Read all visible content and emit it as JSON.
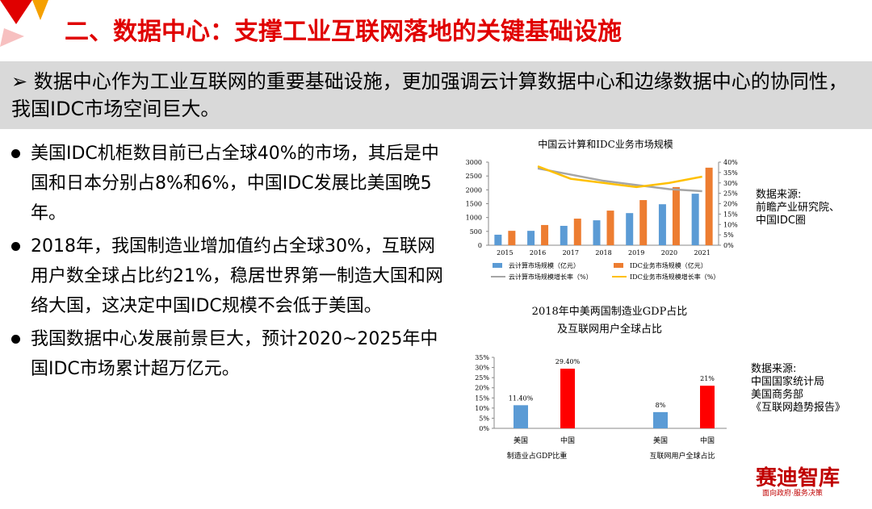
{
  "header": {
    "title": "二、数据中心：支撑工业互联网落地的关键基础设施"
  },
  "summary": "数据中心作为工业互联网的重要基础设施，更加强调云计算数据中心和边缘数据中心的协同性，我国IDC市场空间巨大。",
  "bullets": [
    "美国IDC机柜数目前已占全球40%的市场，其后是中国和日本分别占8%和6%，中国IDC发展比美国晚5年。",
    "2018年，我国制造业增加值约占全球30%，互联网用户数全球占比约21%，稳居世界第一制造大国和网络大国，这决定中国IDC规模不会低于美国。",
    "我国数据中心发展前景巨大，预计2020~2025年中国IDC市场累计超万亿元。"
  ],
  "sources": [
    [
      "数据来源:",
      "前瞻产业研究院、",
      "中国IDC圈"
    ],
    [
      "数据来源:",
      "中国国家统计局",
      "美国商务部",
      "《互联网趋势报告》"
    ]
  ],
  "watermark": {
    "brand": "赛迪智库",
    "slogan": "面向政府·服务决策"
  },
  "chart_data": [
    {
      "type": "combo",
      "title": "中国云计算和IDC业务市场规模",
      "categories": [
        "2015",
        "2016",
        "2017",
        "2018",
        "2019",
        "2020",
        "2021"
      ],
      "series": [
        {
          "name": "云计算市场规模（亿元）",
          "kind": "bar",
          "color": "#5b9bd5",
          "values": [
            380,
            520,
            700,
            900,
            1160,
            1480,
            1860
          ]
        },
        {
          "name": "IDC业务市场规模（亿元）",
          "kind": "bar",
          "color": "#ed7d31",
          "values": [
            520,
            730,
            960,
            1250,
            1630,
            2100,
            2800
          ]
        },
        {
          "name": "云计算市场规模增长率（%）",
          "kind": "line",
          "axis": "y2",
          "color": "#a5a5a5",
          "values": [
            null,
            37,
            34,
            31,
            29,
            27,
            26
          ]
        },
        {
          "name": "IDC业务市场规模增长率（%）",
          "kind": "line",
          "axis": "y2",
          "color": "#ffc000",
          "values": [
            null,
            38,
            32,
            30,
            28,
            30,
            33
          ]
        }
      ],
      "ylim": [
        0,
        3000
      ],
      "yticks": [
        0,
        500,
        1000,
        1500,
        2000,
        2500,
        3000
      ],
      "y2lim": [
        0,
        40
      ],
      "y2ticks": [
        {
          "value": 0,
          "label": "0%"
        },
        {
          "value": 5,
          "label": "5%"
        },
        {
          "value": 10,
          "label": "10%"
        },
        {
          "value": 15,
          "label": "15%"
        },
        {
          "value": 20,
          "label": "20%"
        },
        {
          "value": 25,
          "label": "25%"
        },
        {
          "value": 30,
          "label": "30%"
        },
        {
          "value": 35,
          "label": "35%"
        },
        {
          "value": 40,
          "label": "40%"
        }
      ]
    },
    {
      "type": "bar",
      "title": [
        "2018年中美两国制造业GDP占比",
        "及互联网用户全球占比"
      ],
      "categories": [
        "美国",
        "中国",
        "美国",
        "中国"
      ],
      "group_labels": [
        "制造业占GDP比重",
        "互联网用户全球占比"
      ],
      "values": [
        11.4,
        29.4,
        8,
        21
      ],
      "value_labels": [
        "11.40%",
        "29.40%",
        "8%",
        "21%"
      ],
      "colors": [
        "#5b9bd5",
        "#ff0000",
        "#5b9bd5",
        "#ff0000"
      ],
      "ylim": [
        0,
        35
      ],
      "yticks": [
        {
          "value": 0,
          "label": "0%"
        },
        {
          "value": 5,
          "label": "5%"
        },
        {
          "value": 10,
          "label": "10%"
        },
        {
          "value": 15,
          "label": "15%"
        },
        {
          "value": 20,
          "label": "20%"
        },
        {
          "value": 25,
          "label": "25%"
        },
        {
          "value": 30,
          "label": "30%"
        },
        {
          "value": 35,
          "label": "35%"
        }
      ]
    }
  ]
}
